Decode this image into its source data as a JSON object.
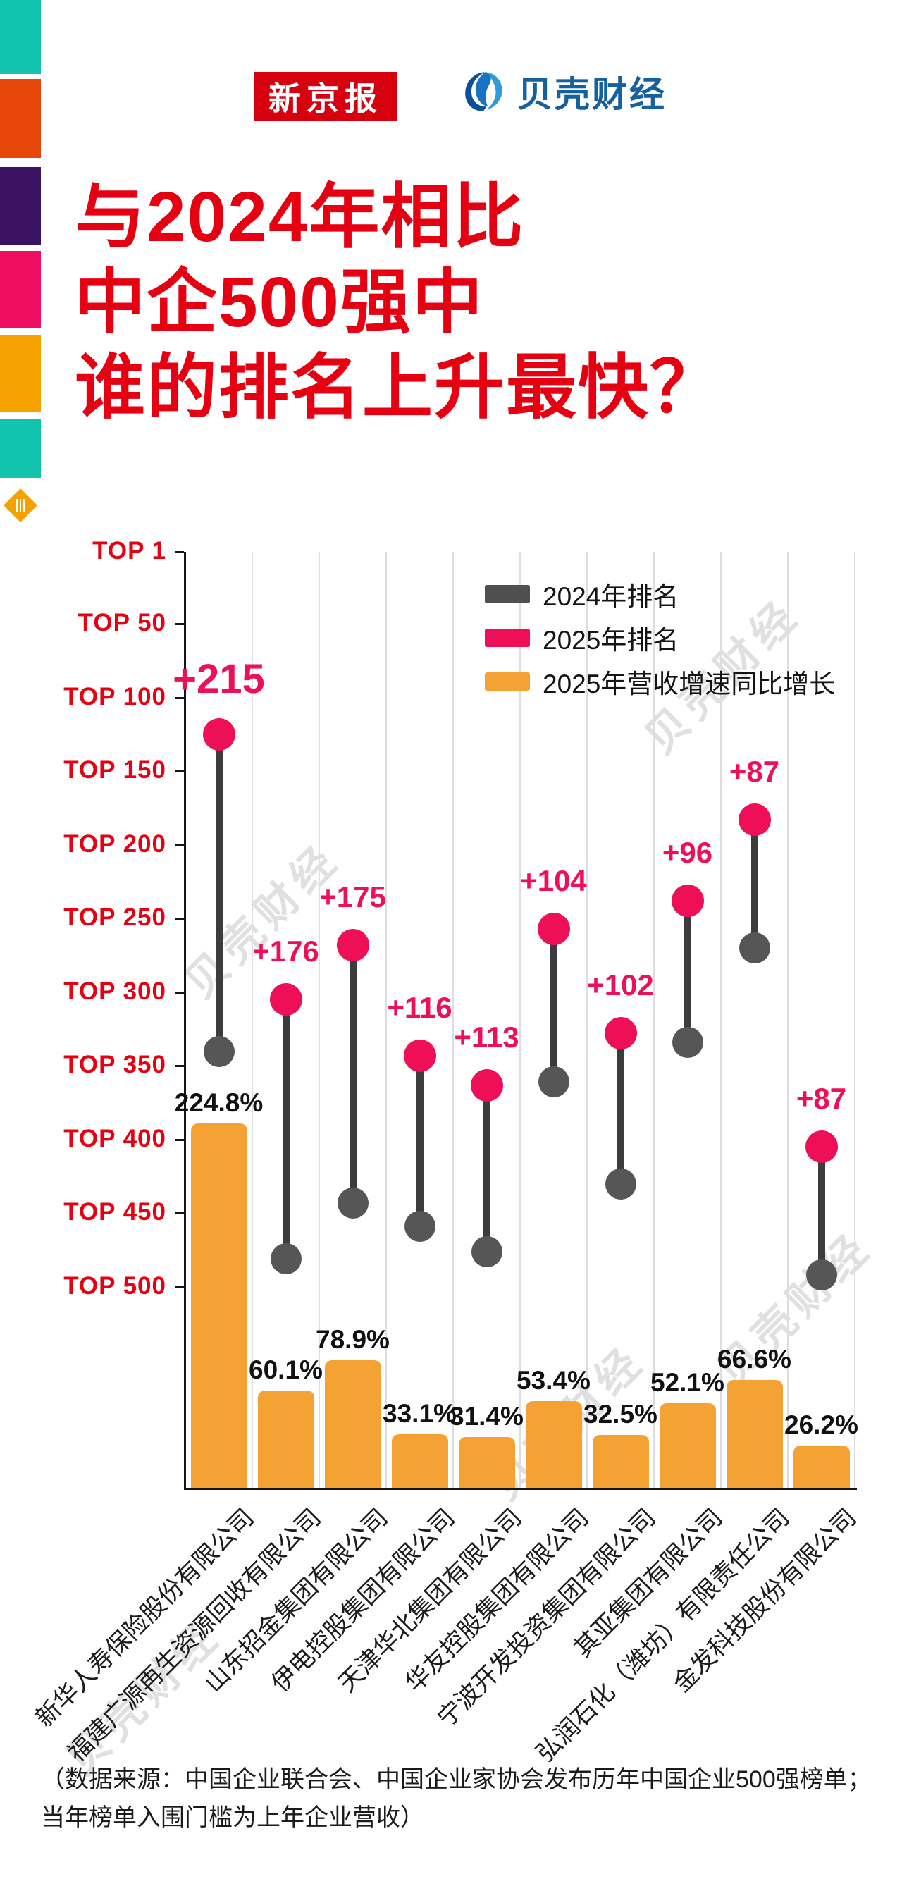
{
  "brand": {
    "xinjingbao_logo": "新京报",
    "beike_logo": "贝壳财经"
  },
  "title": {
    "line1": "与2024年相比",
    "line2": "中企500强中",
    "line3": "谁的排名上升最快？"
  },
  "watermark_text": "贝壳财经",
  "legend": {
    "items": [
      {
        "label": "2024年排名",
        "color": "#4f4f4f"
      },
      {
        "label": "2025年排名",
        "color": "#ef0f56"
      },
      {
        "label": "2025年营收增速同比增长",
        "color": "#f3a233"
      }
    ]
  },
  "chart_data": {
    "type": "dumbbell+bar",
    "rank_axis": {
      "ticks": [
        "TOP 1",
        "TOP 50",
        "TOP 100",
        "TOP 150",
        "TOP 200",
        "TOP 250",
        "TOP 300",
        "TOP 350",
        "TOP 400",
        "TOP 450",
        "TOP 500"
      ],
      "range": [
        1,
        500
      ],
      "direction": "rank 1 at top"
    },
    "series": [
      {
        "name": "2024年排名",
        "type": "dot",
        "color": "#4f4f4f"
      },
      {
        "name": "2025年排名",
        "type": "dot",
        "color": "#ef0f56"
      },
      {
        "name": "2025年营收增速同比增长",
        "type": "bar",
        "color": "#f3a233"
      }
    ],
    "companies": [
      {
        "name": "新华人寿保险股份有限公司",
        "rank_2025": 125,
        "rank_2024": 340,
        "change": "+215",
        "growth": 224.8,
        "growth_label": "224.8%"
      },
      {
        "name": "福建广源再生资源回收有限公司",
        "rank_2025": 305,
        "rank_2024": 481,
        "change": "+176",
        "growth": 60.1,
        "growth_label": "60.1%"
      },
      {
        "name": "山东招金集团有限公司",
        "rank_2025": 268,
        "rank_2024": 443,
        "change": "+175",
        "growth": 78.9,
        "growth_label": "78.9%"
      },
      {
        "name": "伊电控股集团有限公司",
        "rank_2025": 343,
        "rank_2024": 459,
        "change": "+116",
        "growth": 33.1,
        "growth_label": "33.1%"
      },
      {
        "name": "天津华北集团有限公司",
        "rank_2025": 363,
        "rank_2024": 476,
        "change": "+113",
        "growth": 31.4,
        "growth_label": "31.4%"
      },
      {
        "name": "华友控股集团有限公司",
        "rank_2025": 257,
        "rank_2024": 361,
        "change": "+104",
        "growth": 53.4,
        "growth_label": "53.4%"
      },
      {
        "name": "宁波开发投资集团有限公司",
        "rank_2025": 328,
        "rank_2024": 430,
        "change": "+102",
        "growth": 32.5,
        "growth_label": "32.5%"
      },
      {
        "name": "其亚集团有限公司",
        "rank_2025": 238,
        "rank_2024": 334,
        "change": "+96",
        "growth": 52.1,
        "growth_label": "52.1%"
      },
      {
        "name": "弘润石化（潍坊）有限责任公司",
        "rank_2025": 183,
        "rank_2024": 270,
        "change": "+87",
        "growth": 66.6,
        "growth_label": "66.6%"
      },
      {
        "name": "金发科技股份有限公司",
        "rank_2025": 405,
        "rank_2024": 492,
        "change": "+87",
        "growth": 26.2,
        "growth_label": "26.2%"
      }
    ]
  },
  "footer": {
    "line1": "（数据来源：中国企业联合会、中国企业家协会发布历年中国企业500强榜单；",
    "line2": "当年榜单入围门槛为上年企业营收）"
  },
  "decor": {
    "side_stripes": [
      "#12c4ae",
      "#e8470b",
      "#3b1162",
      "#ee0f63",
      "#f5a100",
      "#12c4ae"
    ],
    "diamond_color": "#f5a100"
  }
}
